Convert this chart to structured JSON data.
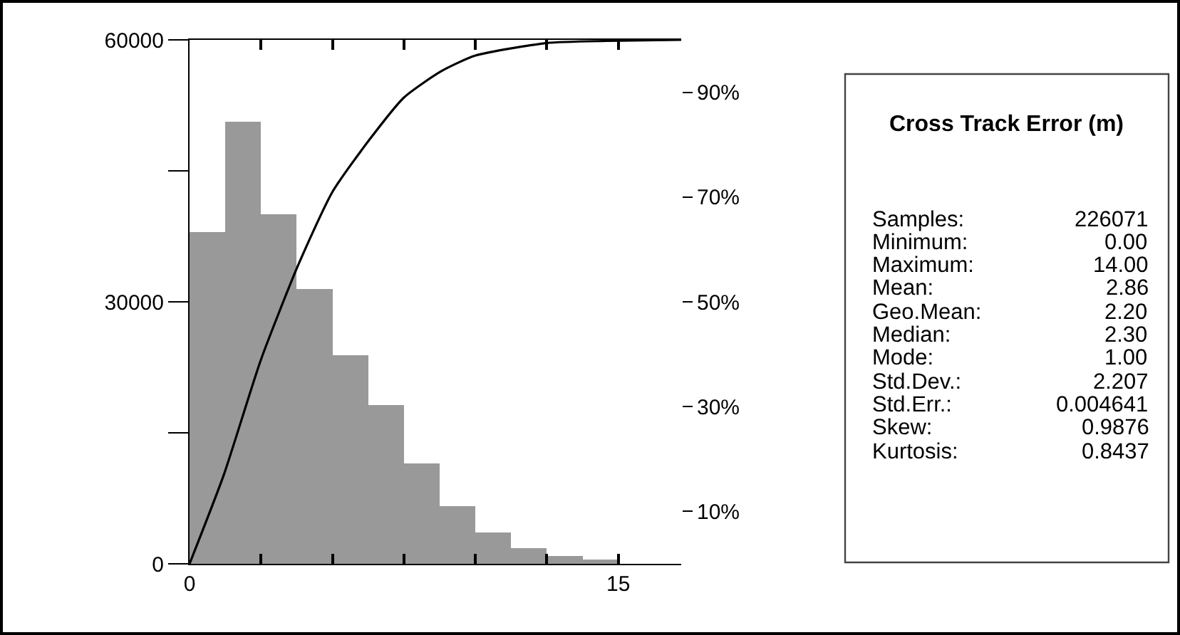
{
  "chart_data": {
    "type": "histogram",
    "title": "Cross Track Error (m)",
    "bins": [
      0,
      1.25,
      2.5,
      3.75,
      5,
      6.25,
      7.5,
      8.75,
      10,
      11.25,
      12.5,
      13.75,
      15
    ],
    "values": [
      38000,
      50600,
      40000,
      31500,
      23900,
      18200,
      11500,
      6600,
      3600,
      1800,
      900,
      500
    ],
    "color": "#999999",
    "series": [
      {
        "type": "line",
        "axis": "y2",
        "color": "#000000",
        "x": [
          0,
          1.2,
          2.5,
          3.8,
          5,
          6.3,
          7.5,
          8.8,
          10,
          12.5,
          14.6,
          17.2
        ],
        "values": [
          0,
          17,
          39,
          57,
          71,
          81,
          89,
          94,
          97,
          99.4,
          99.8,
          100
        ]
      }
    ],
    "xlim": [
      0,
      17.2
    ],
    "xticks": [
      0,
      {
        "value": 2.5,
        "label": null
      },
      {
        "value": 5,
        "label": null
      },
      {
        "value": 7.5,
        "label": null
      },
      {
        "value": 10,
        "label": null
      },
      {
        "value": 12.5,
        "label": null
      },
      15
    ],
    "ylim": [
      0,
      60000
    ],
    "yticks": [
      0,
      {
        "value": 15000,
        "label": null
      },
      30000,
      {
        "value": 45000,
        "label": null
      },
      60000
    ],
    "y2lim": [
      0,
      100
    ],
    "y2ticks": [
      {
        "value": 10,
        "label": "10%"
      },
      {
        "value": 30,
        "label": "30%"
      },
      {
        "value": 50,
        "label": "50%"
      },
      {
        "value": 70,
        "label": "70%"
      },
      {
        "value": 90,
        "label": "90%"
      }
    ],
    "annotations": [
      "Samples:",
      "226071",
      "Minimum:",
      "0.00",
      "Maximum:",
      "14.00",
      "Mean:",
      "2.86",
      "Geo.Mean:",
      "2.20",
      "Median:",
      "2.30",
      "Mode:",
      "1.00",
      "Std.Dev.:",
      "2.207",
      "Std.Err.:",
      "0.004641",
      "Skew:",
      "0.9876",
      "Kurtosis:",
      "0.8437"
    ]
  }
}
